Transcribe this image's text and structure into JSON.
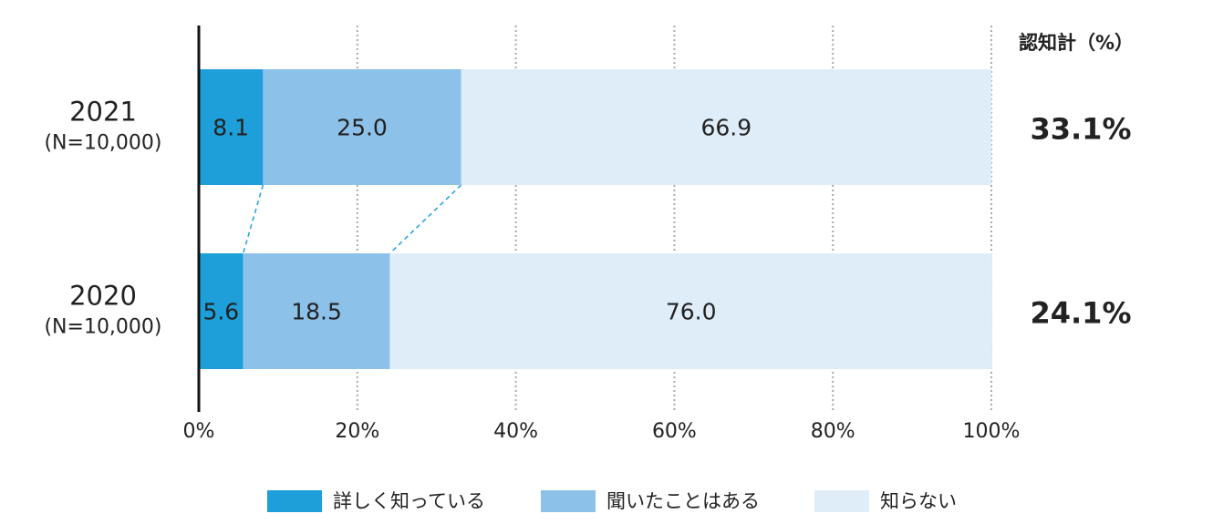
{
  "chart_data": {
    "type": "stacked_bar_horizontal",
    "categories": [
      "2021",
      "2020"
    ],
    "category_sublabels": [
      "(N=10,000)",
      "(N=10,000)"
    ],
    "series": [
      {
        "name": "詳しく知っている",
        "color": "#1f9fd9",
        "values": [
          8.1,
          5.6
        ]
      },
      {
        "name": "聞いたことはある",
        "color": "#8cc2ea",
        "values": [
          25.0,
          18.5
        ],
        "value_labels": [
          "25.0",
          "18.5"
        ]
      },
      {
        "name": "知らない",
        "color": "#deedf8",
        "values": [
          66.9,
          76.0
        ],
        "value_labels": [
          "66.9",
          "76.0"
        ]
      }
    ],
    "totals": {
      "title": "認知計（%）",
      "values": [
        33.1,
        24.1
      ],
      "value_labels": [
        "33.1%",
        "24.1%"
      ]
    },
    "xlim": [
      0,
      100
    ],
    "xticks": [
      {
        "value": 0,
        "label": "0%"
      },
      {
        "value": 20,
        "label": "20%"
      },
      {
        "value": 40,
        "label": "40%"
      },
      {
        "value": 60,
        "label": "60%"
      },
      {
        "value": 80,
        "label": "80%"
      },
      {
        "value": 100,
        "label": "100%"
      }
    ],
    "grid": true,
    "legend": "bottom"
  }
}
